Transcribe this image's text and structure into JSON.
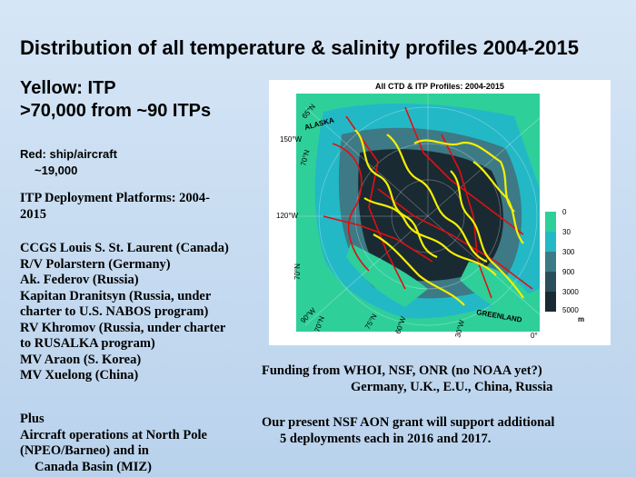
{
  "slide": {
    "title": "Distribution of all temperature & salinity profiles 2004-2015",
    "yellow_line1": "Yellow: ITP",
    "yellow_line2": ">70,000 from ~90 ITPs",
    "red_line1": "Red: ship/aircraft",
    "red_line2": "~19,000",
    "itp_heading_line1": "ITP Deployment Platforms: 2004-",
    "itp_heading_line2": "2015",
    "platforms": [
      "CCGS Louis S. St. Laurent  (Canada)",
      "R/V Polarstern (Germany)",
      "Ak. Federov (Russia)",
      "Kapitan Dranitsyn (Russia, under",
      "charter to U.S. NABOS program)",
      "RV Khromov (Russia, under charter",
      "to RUSALKA program)",
      "MV Araon (S. Korea)",
      "MV Xuelong (China)"
    ],
    "plus_label": "Plus",
    "plus_lines": [
      "Aircraft operations at North Pole",
      "(NPEO/Barneo) and in",
      "Canada Basin (MIZ)"
    ],
    "funding_line1": "Funding from  WHOI, NSF, ONR (no NOAA yet?)",
    "funding_line2": "Germany, U.K., E.U., China, Russia",
    "aon_line1": "Our present NSF AON grant will support additional",
    "aon_line2": "5 deployments each in 2016 and 2017."
  },
  "map": {
    "title": "All CTD & ITP Profiles: 2004-2015",
    "lat_labels": [
      "65°N",
      "150°W",
      "70°N",
      "120°W",
      "70°N",
      "90°W",
      "70°N",
      "75°N",
      "60°W",
      "30°W",
      "0°"
    ],
    "region_labels": [
      "ALASKA",
      "GREENLAND"
    ],
    "colorbar_ticks": [
      "0",
      "30",
      "300",
      "900",
      "3000",
      "5000"
    ],
    "colorbar_unit": "m",
    "colors": {
      "land": "#2fcf9a",
      "shelf": "#23b8c6",
      "deep": "#1a2a33",
      "itp": "#f5f000",
      "ship": "#e01010"
    }
  }
}
